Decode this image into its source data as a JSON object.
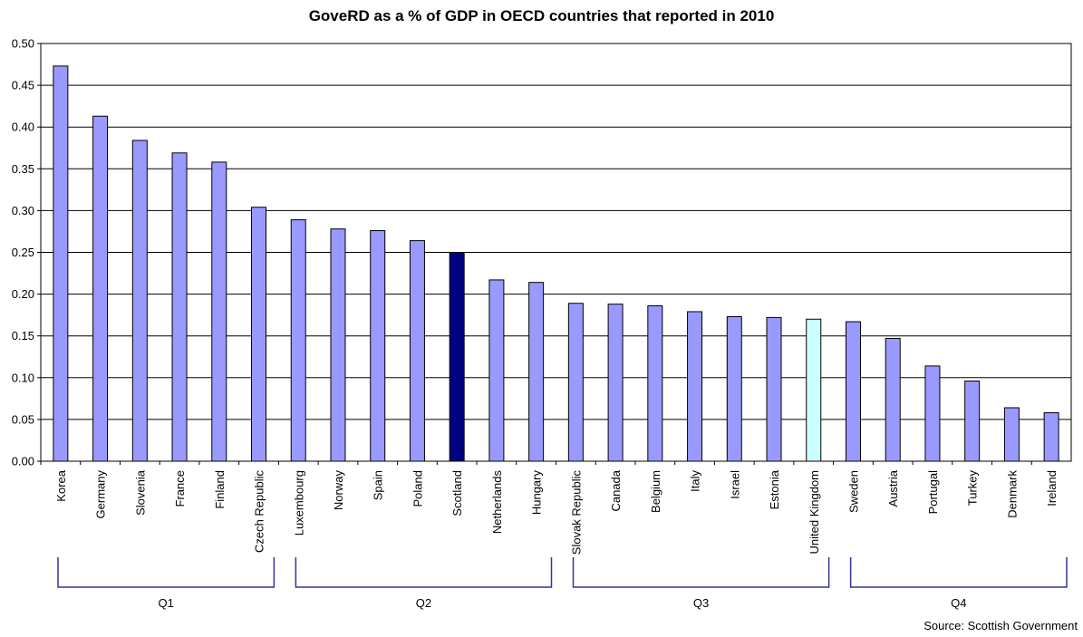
{
  "chart_data": {
    "type": "bar",
    "title": "GoveRD as a % of GDP in OECD countries that reported in 2010",
    "xlabel": "",
    "ylabel": "",
    "ylim": [
      0,
      0.5
    ],
    "yticks": [
      "0.00",
      "0.05",
      "0.10",
      "0.15",
      "0.20",
      "0.25",
      "0.30",
      "0.35",
      "0.40",
      "0.45",
      "0.50"
    ],
    "grid": true,
    "categories": [
      "Korea",
      "Germany",
      "Slovenia",
      "France",
      "Finland",
      "Czech Republic",
      "Luxembourg",
      "Norway",
      "Spain",
      "Poland",
      "Scotland",
      "Netherlands",
      "Hungary",
      "Slovak Republic",
      "Canada",
      "Belgium",
      "Italy",
      "Israel",
      "Estonia",
      "United Kingdom",
      "Sweden",
      "Austria",
      "Portugal",
      "Turkey",
      "Denmark",
      "Ireland"
    ],
    "values": [
      0.473,
      0.413,
      0.384,
      0.369,
      0.358,
      0.304,
      0.289,
      0.278,
      0.276,
      0.264,
      0.25,
      0.217,
      0.214,
      0.189,
      0.188,
      0.186,
      0.179,
      0.173,
      0.172,
      0.17,
      0.167,
      0.147,
      0.114,
      0.096,
      0.064,
      0.058
    ],
    "colors": {
      "default": "#9999ff",
      "Scotland": "#000080",
      "United Kingdom": "#ccffff",
      "bracket": "#333399",
      "grid": "#000000"
    },
    "groups": [
      {
        "label": "Q1",
        "start": 0,
        "end": 5
      },
      {
        "label": "Q2",
        "start": 6,
        "end": 12
      },
      {
        "label": "Q3",
        "start": 13,
        "end": 19
      },
      {
        "label": "Q4",
        "start": 20,
        "end": 25
      }
    ],
    "source": "Source: Scottish Government"
  }
}
